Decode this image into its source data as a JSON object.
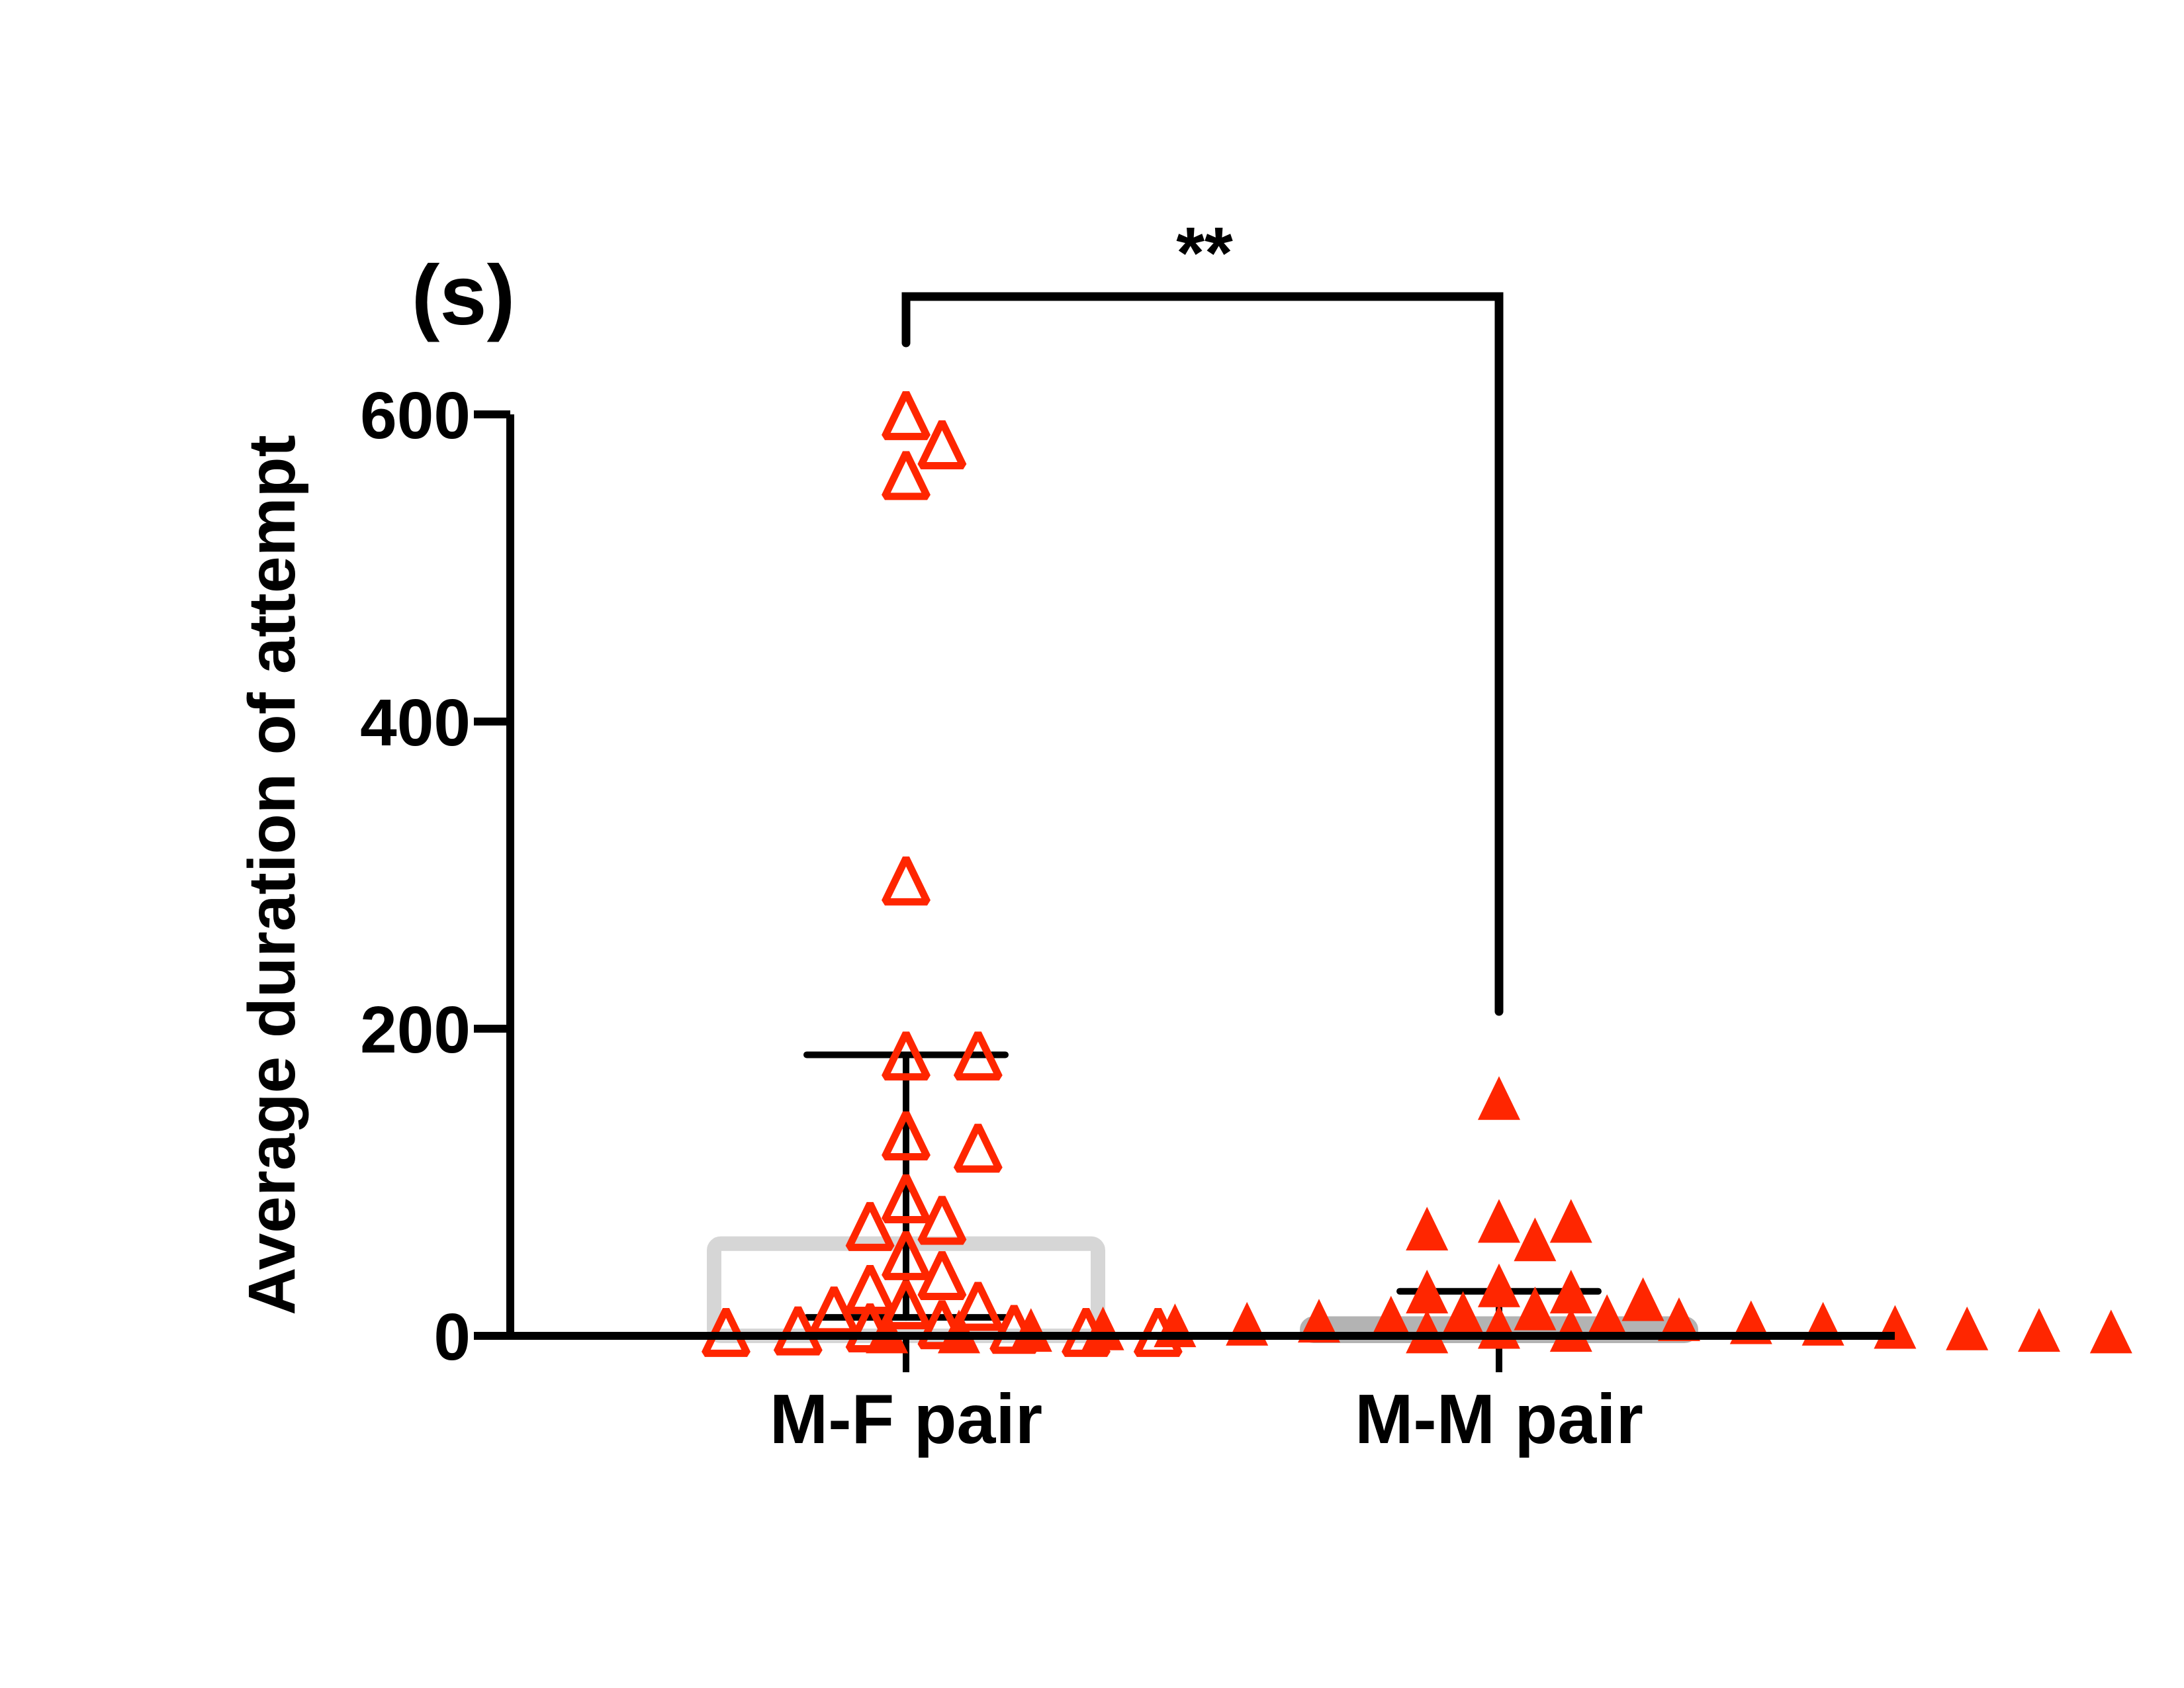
{
  "chart_data": {
    "type": "scatter",
    "title": "",
    "ylabel": "Average duration of attempt",
    "yunit": "(s)",
    "xlabel": "",
    "ylim": [
      0,
      600
    ],
    "yticks": [
      0,
      200,
      400,
      600
    ],
    "yticklabels": [
      "0",
      "200",
      "400",
      "600"
    ],
    "categories": [
      "M-F pair",
      "M-M pair"
    ],
    "grid": false,
    "series": [
      {
        "category": "M-F pair",
        "marker": "open-triangle",
        "color": "#ff2600",
        "bar_color": "#d6d6d6",
        "mean": 60,
        "error_low": 12,
        "error_high": 183,
        "values": [
          597,
          578,
          558,
          294,
          180,
          180,
          128,
          120,
          87,
          73,
          69,
          50,
          37,
          28,
          18,
          17,
          14,
          5,
          3,
          2,
          1,
          0,
          0,
          0
        ]
      },
      {
        "category": "M-M pair",
        "marker": "filled-triangle",
        "color": "#ff2600",
        "bar_color": "#b3b3b3",
        "mean": 8,
        "error_low": 0,
        "error_high": 29,
        "values": [
          152,
          72,
          72,
          67,
          60,
          30,
          26,
          26,
          21,
          15,
          12,
          10,
          9,
          8,
          7,
          6,
          5,
          5,
          4,
          3,
          3,
          2,
          2,
          1,
          1,
          1,
          0,
          0,
          0,
          0
        ]
      }
    ],
    "annotations": [
      {
        "text": "**",
        "between": [
          "M-F pair",
          "M-M pair"
        ]
      }
    ]
  }
}
